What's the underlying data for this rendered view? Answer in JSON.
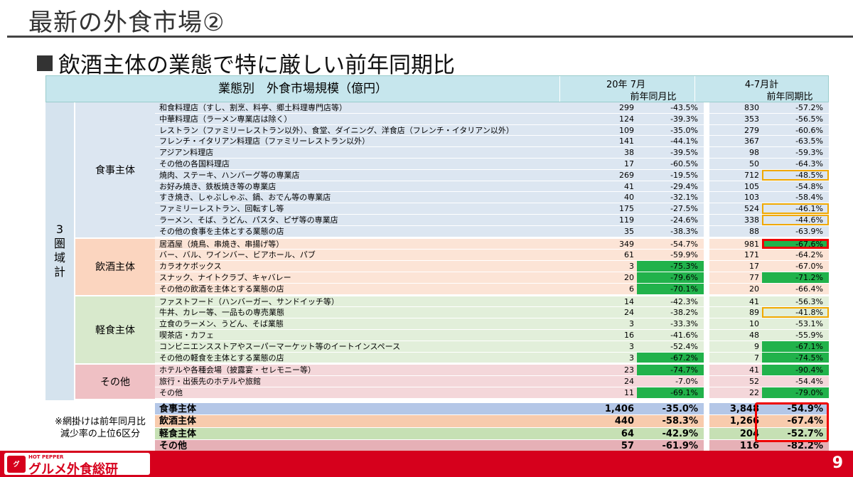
{
  "title": "最新の外食市場②",
  "subtitle": "飲酒主体の業態で特に厳しい前年同期比",
  "table": {
    "header_main": "業態別　外食市場規模（億円）",
    "period1": "20年 7月",
    "period1_sub": "前年同月比",
    "period2": "4-7月計",
    "period2_sub": "前年同期比",
    "region_label": [
      "3",
      "圏",
      "域",
      "計"
    ],
    "groups": [
      {
        "label": "食事主体",
        "rows": [
          {
            "name": "和食料理店（すし、割烹、料亭、郷土料理専門店等）",
            "v1": "299",
            "c1": "-43.5%",
            "v2": "830",
            "c2": "-57.2%"
          },
          {
            "name": "中華料理店（ラーメン専業店は除く）",
            "v1": "124",
            "c1": "-39.3%",
            "v2": "353",
            "c2": "-56.5%"
          },
          {
            "name": "レストラン（ファミリーレストラン以外）、食堂、ダイニング、洋食店（フレンチ・イタリアン以外）",
            "v1": "109",
            "c1": "-35.0%",
            "v2": "279",
            "c2": "-60.6%"
          },
          {
            "name": "フレンチ・イタリアン料理店（ファミリーレストラン以外）",
            "v1": "141",
            "c1": "-44.1%",
            "v2": "367",
            "c2": "-63.5%"
          },
          {
            "name": "アジアン料理店",
            "v1": "38",
            "c1": "-39.5%",
            "v2": "98",
            "c2": "-59.3%"
          },
          {
            "name": "その他の各国料理店",
            "v1": "17",
            "c1": "-60.5%",
            "v2": "50",
            "c2": "-64.3%"
          },
          {
            "name": "焼肉、ステーキ、ハンバーグ等の専業店",
            "v1": "269",
            "c1": "-19.5%",
            "v2": "712",
            "c2": "-48.5%",
            "m2": "ob"
          },
          {
            "name": "お好み焼き、鉄板焼き等の専業店",
            "v1": "41",
            "c1": "-29.4%",
            "v2": "105",
            "c2": "-54.8%"
          },
          {
            "name": "すき焼き、しゃぶしゃぶ、鍋、おでん等の専業店",
            "v1": "40",
            "c1": "-32.1%",
            "v2": "103",
            "c2": "-58.4%"
          },
          {
            "name": "ファミリーレストラン、回転すし等",
            "v1": "175",
            "c1": "-27.5%",
            "v2": "524",
            "c2": "-46.1%",
            "m2": "ob"
          },
          {
            "name": "ラーメン、そば、うどん、パスタ、ピザ等の専業店",
            "v1": "119",
            "c1": "-24.6%",
            "v2": "338",
            "c2": "-44.6%",
            "m2": "ob"
          },
          {
            "name": "その他の食事を主体とする業態の店",
            "v1": "35",
            "c1": "-38.3%",
            "v2": "88",
            "c2": "-63.9%"
          }
        ]
      },
      {
        "label": "飲酒主体",
        "rows": [
          {
            "name": "居酒屋（焼鳥、串焼き、串揚げ等）",
            "v1": "349",
            "c1": "-54.7%",
            "v2": "981",
            "c2": "-67.6%",
            "m2": "hl rb"
          },
          {
            "name": "バー、バル、ワインバー、ビアホール、パブ",
            "v1": "61",
            "c1": "-59.9%",
            "v2": "171",
            "c2": "-64.2%"
          },
          {
            "name": "カラオケボックス",
            "v1": "3",
            "c1": "-75.3%",
            "v2": "17",
            "c2": "-67.0%",
            "m1": "hl"
          },
          {
            "name": "スナック、ナイトクラブ、キャバレー",
            "v1": "20",
            "c1": "-79.6%",
            "v2": "77",
            "c2": "-71.2%",
            "m1": "hl",
            "m2": "hl"
          },
          {
            "name": "その他の飲酒を主体とする業態の店",
            "v1": "6",
            "c1": "-70.1%",
            "v2": "20",
            "c2": "-66.4%",
            "m1": "hl"
          }
        ]
      },
      {
        "label": "軽食主体",
        "rows": [
          {
            "name": "ファストフード（ハンバーガー、サンドイッチ等）",
            "v1": "14",
            "c1": "-42.3%",
            "v2": "41",
            "c2": "-56.3%"
          },
          {
            "name": "牛丼、カレー等、一品もの専売業態",
            "v1": "24",
            "c1": "-38.2%",
            "v2": "89",
            "c2": "-41.8%",
            "m2": "ob"
          },
          {
            "name": "立食のラーメン、うどん、そば業態",
            "v1": "3",
            "c1": "-33.3%",
            "v2": "10",
            "c2": "-53.1%"
          },
          {
            "name": "喫茶店・カフェ",
            "v1": "16",
            "c1": "-41.6%",
            "v2": "48",
            "c2": "-55.9%"
          },
          {
            "name": "コンビニエンスストアやスーパーマーケット等のイートインスペース",
            "v1": "3",
            "c1": "-52.4%",
            "v2": "9",
            "c2": "-67.1%",
            "m2": "hl"
          },
          {
            "name": "その他の軽食を主体とする業態の店",
            "v1": "3",
            "c1": "-67.2%",
            "v2": "7",
            "c2": "-74.5%",
            "m1": "hl",
            "m2": "hl"
          }
        ]
      },
      {
        "label": "その他",
        "rows": [
          {
            "name": "ホテルや各種会場（披露宴・セレモニー等）",
            "v1": "23",
            "c1": "-74.7%",
            "v2": "41",
            "c2": "-90.4%",
            "m1": "hl",
            "m2": "hl"
          },
          {
            "name": "旅行・出張先のホテルや旅館",
            "v1": "24",
            "c1": "-7.0%",
            "v2": "52",
            "c2": "-54.4%"
          },
          {
            "name": "その他",
            "v1": "11",
            "c1": "-69.1%",
            "v2": "22",
            "c2": "-79.0%",
            "m1": "hl",
            "m2": "hl"
          }
        ]
      }
    ],
    "note": "※網掛けは前年同月比減少率の上位6区分",
    "note_lines": [
      "※網掛けは前年同月比",
      "減少率の上位6区分"
    ],
    "totals": [
      {
        "name": "食事主体",
        "v1": "1,406",
        "c1": "-35.0%",
        "v2": "3,848",
        "c2": "-54.9%"
      },
      {
        "name": "飲酒主体",
        "v1": "440",
        "c1": "-58.3%",
        "v2": "1,266",
        "c2": "-67.4%"
      },
      {
        "name": "軽食主体",
        "v1": "64",
        "c1": "-42.9%",
        "v2": "204",
        "c2": "-52.7%"
      },
      {
        "name": "その他",
        "v1": "57",
        "c1": "-61.9%",
        "v2": "116",
        "c2": "-82.2%"
      }
    ]
  },
  "footer": {
    "logo_small": "HOT PEPPER",
    "logo_mark": "グ",
    "logo_text": "グルメ外食総研",
    "page_number": "9"
  },
  "colors": {
    "highlight": "#21b24b",
    "orange_outline": "#f0a800",
    "red_outline": "#e00000",
    "brand_red": "#d6001c"
  }
}
